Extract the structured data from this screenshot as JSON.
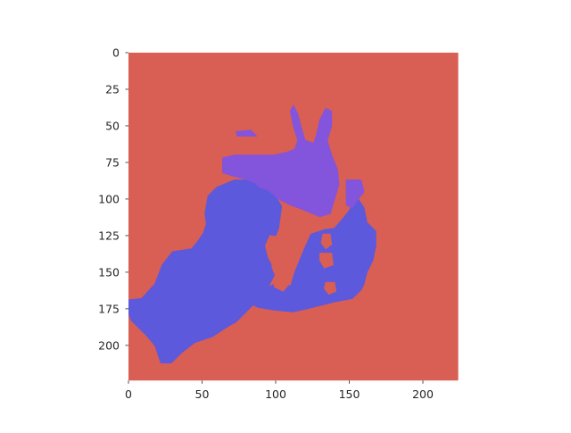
{
  "chart_data": {
    "type": "heatmap",
    "title": "",
    "xlabel": "",
    "ylabel": "",
    "image_size": [
      224,
      224
    ],
    "xlim": [
      0,
      224
    ],
    "ylim": [
      224,
      0
    ],
    "x_ticks": [
      0,
      50,
      100,
      150,
      200
    ],
    "y_ticks": [
      0,
      25,
      50,
      75,
      100,
      125,
      150,
      175,
      200
    ],
    "grid": false,
    "colors": {
      "background": "#d95e54",
      "blue_region": "#5c59dc",
      "purple_region": "#8354dc"
    },
    "segments": [
      {
        "color": "#5c59dc",
        "outline": [
          [
            0,
            169
          ],
          [
            9,
            168
          ],
          [
            18,
            158
          ],
          [
            23,
            145
          ],
          [
            30,
            136
          ],
          [
            43,
            134
          ],
          [
            47,
            129
          ],
          [
            51,
            123
          ],
          [
            53,
            117
          ],
          [
            52,
            110
          ],
          [
            54,
            98
          ],
          [
            60,
            92
          ],
          [
            67,
            89
          ],
          [
            72,
            87
          ],
          [
            80,
            87
          ],
          [
            86,
            89
          ],
          [
            89,
            92
          ],
          [
            95,
            94
          ],
          [
            101,
            100
          ],
          [
            104,
            105
          ],
          [
            102,
            120
          ],
          [
            98,
            130
          ],
          [
            96,
            137
          ],
          [
            97,
            147
          ],
          [
            99,
            152
          ],
          [
            95,
            160
          ],
          [
            87,
            170
          ],
          [
            80,
            177
          ],
          [
            73,
            184
          ],
          [
            66,
            188
          ],
          [
            57,
            194
          ],
          [
            45,
            198
          ],
          [
            36,
            205
          ],
          [
            29,
            212
          ],
          [
            22,
            212
          ],
          [
            18,
            200
          ],
          [
            12,
            193
          ],
          [
            2,
            183
          ],
          [
            0,
            178
          ]
        ]
      },
      {
        "color": "#5c59dc",
        "outline": [
          [
            83,
            168
          ],
          [
            95,
            160
          ],
          [
            105,
            156
          ],
          [
            110,
            160
          ],
          [
            113,
            150
          ],
          [
            117,
            140
          ],
          [
            120,
            133
          ],
          [
            124,
            124
          ],
          [
            133,
            121
          ],
          [
            140,
            120
          ],
          [
            146,
            113
          ],
          [
            150,
            108
          ],
          [
            152,
            103
          ],
          [
            156,
            100
          ],
          [
            160,
            106
          ],
          [
            162,
            116
          ],
          [
            168,
            122
          ],
          [
            168,
            132
          ],
          [
            166,
            142
          ],
          [
            162,
            150
          ],
          [
            160,
            158
          ],
          [
            158,
            162
          ],
          [
            152,
            168
          ],
          [
            141,
            170
          ],
          [
            133,
            172
          ],
          [
            121,
            175
          ],
          [
            112,
            177
          ],
          [
            100,
            176
          ],
          [
            88,
            174
          ],
          [
            82,
            171
          ]
        ]
      },
      {
        "color": "#8354dc",
        "outline": [
          [
            64,
            72
          ],
          [
            72,
            70
          ],
          [
            86,
            70
          ],
          [
            99,
            70
          ],
          [
            108,
            68
          ],
          [
            113,
            66
          ],
          [
            115,
            60
          ],
          [
            112,
            50
          ],
          [
            110,
            40
          ],
          [
            112,
            36
          ],
          [
            115,
            42
          ],
          [
            117,
            50
          ],
          [
            120,
            60
          ],
          [
            126,
            62
          ],
          [
            128,
            55
          ],
          [
            130,
            46
          ],
          [
            134,
            38
          ],
          [
            138,
            40
          ],
          [
            138,
            50
          ],
          [
            135,
            60
          ],
          [
            138,
            70
          ],
          [
            142,
            80
          ],
          [
            143,
            90
          ],
          [
            140,
            100
          ],
          [
            137,
            110
          ],
          [
            130,
            112
          ],
          [
            125,
            110
          ],
          [
            118,
            107
          ],
          [
            110,
            104
          ],
          [
            102,
            100
          ],
          [
            95,
            94
          ],
          [
            89,
            92
          ],
          [
            86,
            89
          ],
          [
            78,
            86
          ],
          [
            70,
            84
          ],
          [
            64,
            82
          ]
        ]
      },
      {
        "color": "#8354dc",
        "outline": [
          [
            148,
            87
          ],
          [
            158,
            87
          ],
          [
            160,
            95
          ],
          [
            156,
            100
          ],
          [
            152,
            106
          ],
          [
            148,
            104
          ]
        ]
      },
      {
        "color": "#8354dc",
        "outline": [
          [
            73,
            54
          ],
          [
            83,
            53
          ],
          [
            87,
            57
          ],
          [
            80,
            57
          ],
          [
            74,
            57
          ]
        ]
      },
      {
        "color": "#d95e54",
        "outline": [
          [
            96,
            125
          ],
          [
            103,
            126
          ],
          [
            106,
            132
          ],
          [
            103,
            140
          ],
          [
            99,
            147
          ],
          [
            95,
            140
          ],
          [
            93,
            132
          ]
        ]
      },
      {
        "color": "#d95e54",
        "outline": [
          [
            100,
            152
          ],
          [
            107,
            150
          ],
          [
            110,
            157
          ],
          [
            105,
            163
          ],
          [
            99,
            160
          ]
        ]
      },
      {
        "color": "#d95e54",
        "outline": [
          [
            132,
            124
          ],
          [
            137,
            124
          ],
          [
            138,
            131
          ],
          [
            134,
            134
          ],
          [
            131,
            130
          ]
        ]
      },
      {
        "color": "#d95e54",
        "outline": [
          [
            130,
            137
          ],
          [
            138,
            137
          ],
          [
            139,
            145
          ],
          [
            133,
            147
          ],
          [
            130,
            142
          ]
        ]
      },
      {
        "color": "#d95e54",
        "outline": [
          [
            134,
            157
          ],
          [
            140,
            157
          ],
          [
            141,
            163
          ],
          [
            136,
            165
          ],
          [
            133,
            161
          ]
        ]
      }
    ]
  }
}
